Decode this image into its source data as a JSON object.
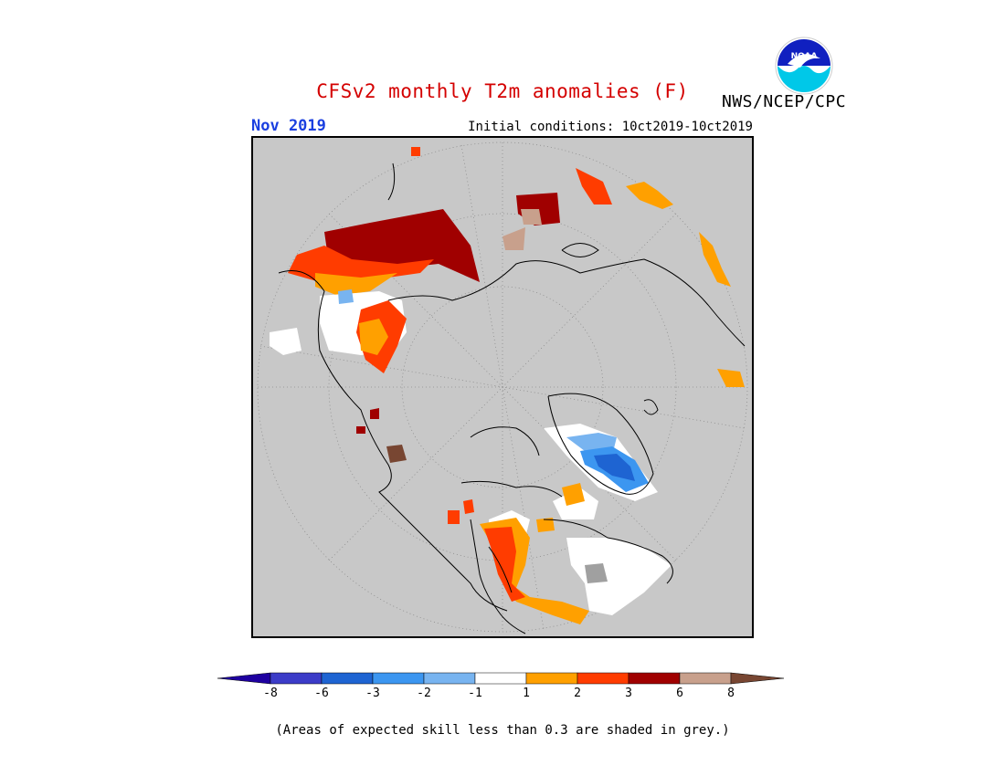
{
  "header": {
    "title": "CFSv2 monthly T2m anomalies (F)",
    "agency": "NWS/NCEP/CPC",
    "month": "Nov 2019",
    "initial_conditions": "Initial conditions: 10ct2019-10ct2019",
    "logo_text": "NOAA"
  },
  "map": {
    "projection": "north-polar-stereographic",
    "background_color": "#c8c8c8",
    "grey_meaning": "skill less than 0.3"
  },
  "legend": {
    "labels": [
      "-8",
      "-6",
      "-3",
      "-2",
      "-1",
      "1",
      "2",
      "3",
      "6",
      "8"
    ],
    "colors": [
      "#1e00a0",
      "#3c3cc8",
      "#1e64d2",
      "#3c96f0",
      "#78b4f0",
      "#ffffff",
      "#ffa000",
      "#ff3c00",
      "#a00000",
      "#c8a08c",
      "#784632"
    ]
  },
  "footnote": "(Areas of expected skill less than 0.3 are shaded in grey.)"
}
